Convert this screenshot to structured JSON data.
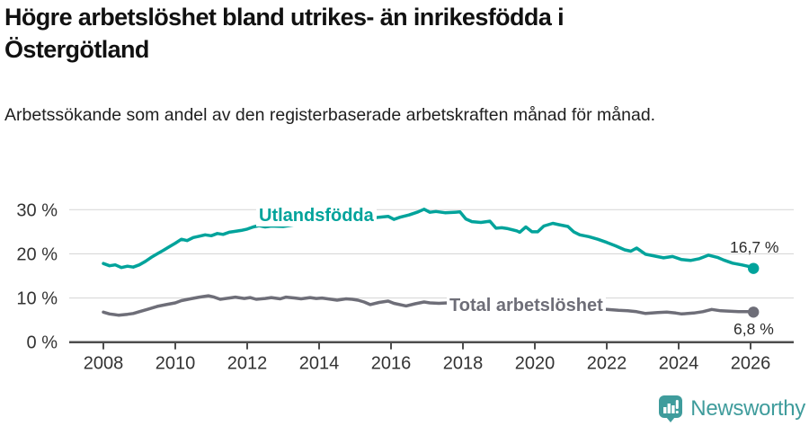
{
  "header": {
    "title": "Högre arbetslöshet bland utrikes- än inrikesfödda i Östergötland",
    "subtitle": "Arbetssökande som andel av den registerbaserade arbetskraften månad för månad."
  },
  "chart_data": {
    "type": "line",
    "title": "Högre arbetslöshet bland utrikes- än inrikesfödda i Östergötland",
    "xlabel": "",
    "ylabel": "",
    "x_ticks": [
      2008,
      2010,
      2012,
      2014,
      2016,
      2018,
      2020,
      2022,
      2024,
      2026
    ],
    "y_ticks": [
      0,
      10,
      20,
      30
    ],
    "y_tick_suffix": " %",
    "xlim": [
      2007.05,
      2027.2
    ],
    "ylim": [
      0,
      34.7
    ],
    "grid": "horizontal",
    "legend_position": "inline-on-line",
    "colors": {
      "grid": "#d9d9d9",
      "axis": "#4d4d4d",
      "tick_text": "#333333"
    },
    "series": [
      {
        "name": "Utlandsfödda",
        "color": "#00a39b",
        "end_label": "16,7 %",
        "end_value": 16.7,
        "points": [
          [
            2008.0,
            17.8
          ],
          [
            2008.17,
            17.3
          ],
          [
            2008.33,
            17.5
          ],
          [
            2008.5,
            16.9
          ],
          [
            2008.67,
            17.2
          ],
          [
            2008.83,
            17.0
          ],
          [
            2009.0,
            17.5
          ],
          [
            2009.17,
            18.3
          ],
          [
            2009.33,
            19.2
          ],
          [
            2009.5,
            20.0
          ],
          [
            2009.67,
            20.8
          ],
          [
            2009.83,
            21.6
          ],
          [
            2010.0,
            22.4
          ],
          [
            2010.17,
            23.3
          ],
          [
            2010.33,
            23.0
          ],
          [
            2010.5,
            23.7
          ],
          [
            2010.67,
            24.0
          ],
          [
            2010.83,
            24.3
          ],
          [
            2011.0,
            24.1
          ],
          [
            2011.17,
            24.6
          ],
          [
            2011.33,
            24.4
          ],
          [
            2011.5,
            24.9
          ],
          [
            2011.67,
            25.1
          ],
          [
            2011.83,
            25.3
          ],
          [
            2012.0,
            25.6
          ],
          [
            2012.17,
            26.1
          ],
          [
            2012.33,
            26.4
          ],
          [
            2012.5,
            26.1
          ],
          [
            2012.67,
            26.3
          ],
          [
            2013.0,
            26.2
          ],
          [
            2013.33,
            26.6
          ],
          [
            2013.67,
            26.8
          ],
          [
            2014.0,
            27.0
          ],
          [
            2014.33,
            27.1
          ],
          [
            2014.67,
            27.3
          ],
          [
            2015.0,
            27.6
          ],
          [
            2015.33,
            27.9
          ],
          [
            2015.67,
            28.3
          ],
          [
            2015.92,
            28.5
          ],
          [
            2016.08,
            27.8
          ],
          [
            2016.25,
            28.3
          ],
          [
            2016.5,
            28.8
          ],
          [
            2016.75,
            29.5
          ],
          [
            2016.92,
            30.1
          ],
          [
            2017.08,
            29.4
          ],
          [
            2017.25,
            29.6
          ],
          [
            2017.5,
            29.3
          ],
          [
            2017.75,
            29.4
          ],
          [
            2017.92,
            29.5
          ],
          [
            2018.08,
            27.9
          ],
          [
            2018.25,
            27.3
          ],
          [
            2018.5,
            27.1
          ],
          [
            2018.75,
            27.4
          ],
          [
            2018.92,
            25.8
          ],
          [
            2019.08,
            25.9
          ],
          [
            2019.25,
            25.7
          ],
          [
            2019.5,
            25.2
          ],
          [
            2019.58,
            24.9
          ],
          [
            2019.75,
            26.1
          ],
          [
            2019.92,
            25.0
          ],
          [
            2020.08,
            25.0
          ],
          [
            2020.25,
            26.3
          ],
          [
            2020.5,
            26.9
          ],
          [
            2020.67,
            26.6
          ],
          [
            2020.92,
            26.2
          ],
          [
            2021.08,
            25.0
          ],
          [
            2021.25,
            24.3
          ],
          [
            2021.5,
            23.9
          ],
          [
            2021.75,
            23.3
          ],
          [
            2022.0,
            22.6
          ],
          [
            2022.25,
            21.8
          ],
          [
            2022.5,
            20.9
          ],
          [
            2022.67,
            20.6
          ],
          [
            2022.83,
            21.3
          ],
          [
            2023.08,
            19.9
          ],
          [
            2023.33,
            19.5
          ],
          [
            2023.58,
            19.1
          ],
          [
            2023.83,
            19.4
          ],
          [
            2024.08,
            18.7
          ],
          [
            2024.33,
            18.5
          ],
          [
            2024.58,
            18.9
          ],
          [
            2024.83,
            19.7
          ],
          [
            2025.08,
            19.2
          ],
          [
            2025.25,
            18.6
          ],
          [
            2025.5,
            17.9
          ],
          [
            2025.75,
            17.5
          ],
          [
            2025.92,
            17.2
          ],
          [
            2026.08,
            16.7
          ]
        ]
      },
      {
        "name": "Total arbetslöshet",
        "color": "#6e6e78",
        "end_label": "6,8 %",
        "end_value": 6.8,
        "points": [
          [
            2008.0,
            6.8
          ],
          [
            2008.17,
            6.4
          ],
          [
            2008.42,
            6.1
          ],
          [
            2008.67,
            6.3
          ],
          [
            2008.83,
            6.5
          ],
          [
            2009.0,
            6.9
          ],
          [
            2009.25,
            7.5
          ],
          [
            2009.5,
            8.1
          ],
          [
            2009.75,
            8.5
          ],
          [
            2010.0,
            8.9
          ],
          [
            2010.17,
            9.4
          ],
          [
            2010.42,
            9.8
          ],
          [
            2010.67,
            10.2
          ],
          [
            2010.92,
            10.5
          ],
          [
            2011.08,
            10.2
          ],
          [
            2011.25,
            9.7
          ],
          [
            2011.5,
            10.0
          ],
          [
            2011.67,
            10.2
          ],
          [
            2011.92,
            9.9
          ],
          [
            2012.08,
            10.1
          ],
          [
            2012.25,
            9.7
          ],
          [
            2012.5,
            9.9
          ],
          [
            2012.67,
            10.1
          ],
          [
            2012.92,
            9.8
          ],
          [
            2013.08,
            10.2
          ],
          [
            2013.33,
            10.0
          ],
          [
            2013.5,
            9.8
          ],
          [
            2013.75,
            10.1
          ],
          [
            2013.92,
            9.9
          ],
          [
            2014.08,
            10.0
          ],
          [
            2014.33,
            9.7
          ],
          [
            2014.5,
            9.5
          ],
          [
            2014.75,
            9.8
          ],
          [
            2014.92,
            9.7
          ],
          [
            2015.08,
            9.5
          ],
          [
            2015.25,
            9.1
          ],
          [
            2015.42,
            8.5
          ],
          [
            2015.67,
            9.0
          ],
          [
            2015.92,
            9.3
          ],
          [
            2016.08,
            8.8
          ],
          [
            2016.42,
            8.2
          ],
          [
            2016.67,
            8.7
          ],
          [
            2016.92,
            9.1
          ],
          [
            2017.08,
            8.9
          ],
          [
            2017.33,
            8.8
          ],
          [
            2017.58,
            8.9
          ],
          [
            2018.0,
            8.3
          ],
          [
            2018.5,
            7.8
          ],
          [
            2019.0,
            7.4
          ],
          [
            2019.5,
            7.2
          ],
          [
            2019.92,
            7.3
          ],
          [
            2020.25,
            8.8
          ],
          [
            2020.58,
            9.4
          ],
          [
            2020.92,
            9.1
          ],
          [
            2021.33,
            8.4
          ],
          [
            2021.67,
            7.8
          ],
          [
            2022.0,
            7.4
          ],
          [
            2022.33,
            7.2
          ],
          [
            2022.58,
            7.1
          ],
          [
            2022.83,
            6.9
          ],
          [
            2023.08,
            6.5
          ],
          [
            2023.42,
            6.7
          ],
          [
            2023.67,
            6.8
          ],
          [
            2023.92,
            6.6
          ],
          [
            2024.08,
            6.4
          ],
          [
            2024.42,
            6.6
          ],
          [
            2024.67,
            6.9
          ],
          [
            2024.92,
            7.4
          ],
          [
            2025.17,
            7.1
          ],
          [
            2025.42,
            7.0
          ],
          [
            2025.67,
            6.9
          ],
          [
            2025.92,
            6.9
          ],
          [
            2026.08,
            6.8
          ]
        ]
      }
    ]
  },
  "branding": {
    "logo_text": "Newsworthy",
    "logo_color": "#3f9c9c",
    "logo_icon": "speech-bubble-bar-chart-icon"
  }
}
